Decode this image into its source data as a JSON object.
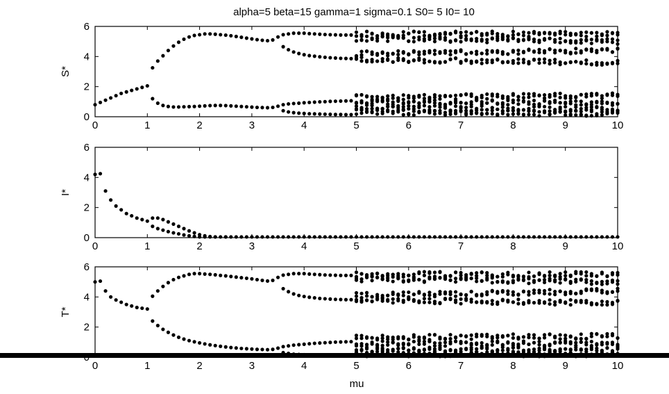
{
  "chart_data": {
    "type": "scatter",
    "title": "alpha=5 beta=15 gamma=1 sigma=0.1 S0= 5 I0= 10",
    "xlabel": "mu",
    "xlim": [
      0,
      10
    ],
    "xticks": [
      "0",
      "1",
      "2",
      "3",
      "4",
      "5",
      "6",
      "7",
      "8",
      "9",
      "10"
    ],
    "marker_color": "#000000",
    "panels": [
      {
        "ylabel": "S*",
        "ylim": [
          0,
          6
        ],
        "yticks": [
          "0",
          "2",
          "4",
          "6"
        ],
        "points": [
          [
            0.0,
            0.8
          ],
          [
            0.1,
            0.95
          ],
          [
            0.2,
            1.1
          ],
          [
            0.3,
            1.25
          ],
          [
            0.4,
            1.4
          ],
          [
            0.5,
            1.55
          ],
          [
            0.6,
            1.65
          ],
          [
            0.7,
            1.75
          ],
          [
            0.8,
            1.85
          ],
          [
            0.9,
            1.95
          ],
          [
            1.0,
            2.05
          ],
          [
            1.1,
            3.25
          ],
          [
            1.2,
            3.7
          ],
          [
            1.3,
            4.05
          ],
          [
            1.4,
            4.4
          ],
          [
            1.5,
            4.7
          ],
          [
            1.6,
            4.95
          ],
          [
            1.7,
            5.15
          ],
          [
            1.8,
            5.3
          ],
          [
            1.9,
            5.4
          ],
          [
            2.0,
            5.45
          ],
          [
            2.1,
            5.5
          ],
          [
            2.2,
            5.5
          ],
          [
            2.3,
            5.48
          ],
          [
            2.4,
            5.45
          ],
          [
            2.5,
            5.42
          ],
          [
            2.6,
            5.38
          ],
          [
            2.7,
            5.33
          ],
          [
            2.8,
            5.28
          ],
          [
            2.9,
            5.22
          ],
          [
            3.0,
            5.17
          ],
          [
            3.1,
            5.12
          ],
          [
            3.2,
            5.08
          ],
          [
            3.3,
            5.05
          ],
          [
            3.4,
            5.1
          ],
          [
            3.5,
            5.3
          ],
          [
            1.1,
            1.2
          ],
          [
            1.2,
            0.9
          ],
          [
            1.3,
            0.75
          ],
          [
            1.4,
            0.68
          ],
          [
            1.5,
            0.65
          ],
          [
            1.6,
            0.65
          ],
          [
            1.7,
            0.66
          ],
          [
            1.8,
            0.67
          ],
          [
            1.9,
            0.68
          ],
          [
            2.0,
            0.7
          ],
          [
            2.1,
            0.72
          ],
          [
            2.2,
            0.74
          ],
          [
            2.3,
            0.75
          ],
          [
            2.4,
            0.75
          ],
          [
            2.5,
            0.74
          ],
          [
            2.6,
            0.72
          ],
          [
            2.7,
            0.7
          ],
          [
            2.8,
            0.68
          ],
          [
            2.9,
            0.66
          ],
          [
            3.0,
            0.64
          ],
          [
            3.1,
            0.62
          ],
          [
            3.2,
            0.61
          ],
          [
            3.3,
            0.6
          ],
          [
            3.4,
            0.62
          ],
          [
            3.5,
            0.7
          ],
          [
            3.6,
            5.45
          ],
          [
            3.7,
            5.5
          ],
          [
            3.8,
            5.55
          ],
          [
            3.9,
            5.55
          ],
          [
            4.0,
            5.55
          ],
          [
            4.1,
            5.52
          ],
          [
            4.2,
            5.5
          ],
          [
            4.3,
            5.48
          ],
          [
            4.4,
            5.46
          ],
          [
            4.5,
            5.45
          ],
          [
            4.6,
            5.44
          ],
          [
            4.7,
            5.43
          ],
          [
            4.8,
            5.43
          ],
          [
            4.9,
            5.43
          ],
          [
            3.6,
            4.65
          ],
          [
            3.7,
            4.45
          ],
          [
            3.8,
            4.3
          ],
          [
            3.9,
            4.2
          ],
          [
            4.0,
            4.12
          ],
          [
            4.1,
            4.06
          ],
          [
            4.2,
            4.02
          ],
          [
            4.3,
            3.98
          ],
          [
            4.4,
            3.95
          ],
          [
            4.5,
            3.92
          ],
          [
            4.6,
            3.9
          ],
          [
            4.7,
            3.88
          ],
          [
            4.8,
            3.87
          ],
          [
            4.9,
            3.86
          ],
          [
            3.6,
            0.4
          ],
          [
            3.7,
            0.32
          ],
          [
            3.8,
            0.27
          ],
          [
            3.9,
            0.24
          ],
          [
            4.0,
            0.22
          ],
          [
            4.1,
            0.2
          ],
          [
            4.2,
            0.19
          ],
          [
            4.3,
            0.18
          ],
          [
            4.4,
            0.17
          ],
          [
            4.5,
            0.16
          ],
          [
            4.6,
            0.15
          ],
          [
            4.7,
            0.15
          ],
          [
            4.8,
            0.14
          ],
          [
            4.9,
            0.14
          ],
          [
            3.6,
            0.8
          ],
          [
            3.7,
            0.85
          ],
          [
            3.8,
            0.88
          ],
          [
            3.9,
            0.9
          ],
          [
            4.0,
            0.93
          ],
          [
            4.1,
            0.95
          ],
          [
            4.2,
            0.97
          ],
          [
            4.3,
            0.99
          ],
          [
            4.4,
            1.0
          ],
          [
            4.5,
            1.02
          ],
          [
            4.6,
            1.03
          ],
          [
            4.7,
            1.04
          ],
          [
            4.8,
            1.05
          ],
          [
            4.9,
            1.06
          ]
        ],
        "chaotic_bands": [
          [
            5.0,
            5.5
          ],
          [
            5.0,
            5.2
          ],
          [
            5.0,
            4.2
          ],
          [
            5.0,
            3.8
          ],
          [
            5.0,
            1.3
          ],
          [
            5.0,
            1.0
          ],
          [
            5.0,
            0.6
          ],
          [
            5.0,
            0.3
          ]
        ],
        "chaotic_bands_upper": [
          [
            10.0,
            5.5
          ],
          [
            10.0,
            5.0
          ],
          [
            10.0,
            4.4
          ],
          [
            10.0,
            3.6
          ],
          [
            10.0,
            1.4
          ],
          [
            10.0,
            0.9
          ],
          [
            10.0,
            0.5
          ],
          [
            10.0,
            0.2
          ]
        ]
      },
      {
        "ylabel": "I*",
        "ylim": [
          0,
          6
        ],
        "yticks": [
          "0",
          "2",
          "4",
          "6"
        ],
        "points": [
          [
            0.0,
            4.2
          ],
          [
            0.1,
            4.25
          ],
          [
            0.2,
            3.1
          ],
          [
            0.3,
            2.5
          ],
          [
            0.4,
            2.1
          ],
          [
            0.5,
            1.85
          ],
          [
            0.6,
            1.6
          ],
          [
            0.7,
            1.45
          ],
          [
            0.8,
            1.3
          ],
          [
            0.9,
            1.2
          ],
          [
            1.0,
            1.1
          ],
          [
            1.1,
            1.3
          ],
          [
            1.2,
            1.3
          ],
          [
            1.3,
            1.2
          ],
          [
            1.4,
            1.05
          ],
          [
            1.5,
            0.9
          ],
          [
            1.6,
            0.75
          ],
          [
            1.7,
            0.6
          ],
          [
            1.8,
            0.45
          ],
          [
            1.9,
            0.32
          ],
          [
            2.0,
            0.2
          ],
          [
            2.1,
            0.12
          ],
          [
            2.2,
            0.07
          ],
          [
            2.3,
            0.04
          ],
          [
            2.4,
            0.02
          ],
          [
            2.5,
            0.01
          ],
          [
            1.1,
            0.75
          ],
          [
            1.2,
            0.6
          ],
          [
            1.3,
            0.5
          ],
          [
            1.4,
            0.4
          ],
          [
            1.5,
            0.32
          ],
          [
            1.6,
            0.25
          ],
          [
            1.7,
            0.18
          ],
          [
            1.8,
            0.12
          ],
          [
            1.9,
            0.08
          ],
          [
            2.0,
            0.05
          ],
          [
            2.1,
            0.03
          ],
          [
            2.2,
            0.02
          ],
          [
            2.3,
            0.01
          ]
        ],
        "zero_from": 2.5
      },
      {
        "ylabel": "T*",
        "ylim": [
          0,
          6
        ],
        "yticks": [
          "0",
          "2",
          "4",
          "6"
        ],
        "points": [
          [
            0.0,
            5.0
          ],
          [
            0.1,
            5.05
          ],
          [
            0.2,
            4.4
          ],
          [
            0.3,
            4.0
          ],
          [
            0.4,
            3.8
          ],
          [
            0.5,
            3.65
          ],
          [
            0.6,
            3.5
          ],
          [
            0.7,
            3.4
          ],
          [
            0.8,
            3.3
          ],
          [
            0.9,
            3.25
          ],
          [
            1.0,
            3.2
          ],
          [
            1.1,
            4.05
          ],
          [
            1.2,
            4.4
          ],
          [
            1.3,
            4.7
          ],
          [
            1.4,
            4.95
          ],
          [
            1.5,
            5.15
          ],
          [
            1.6,
            5.3
          ],
          [
            1.7,
            5.4
          ],
          [
            1.8,
            5.5
          ],
          [
            1.9,
            5.55
          ],
          [
            2.0,
            5.55
          ],
          [
            2.1,
            5.52
          ],
          [
            2.2,
            5.5
          ],
          [
            2.3,
            5.47
          ],
          [
            2.4,
            5.43
          ],
          [
            2.5,
            5.4
          ],
          [
            2.6,
            5.36
          ],
          [
            2.7,
            5.32
          ],
          [
            2.8,
            5.28
          ],
          [
            2.9,
            5.24
          ],
          [
            3.0,
            5.2
          ],
          [
            3.1,
            5.15
          ],
          [
            3.2,
            5.1
          ],
          [
            3.3,
            5.06
          ],
          [
            3.4,
            5.1
          ],
          [
            3.5,
            5.3
          ],
          [
            1.1,
            2.4
          ],
          [
            1.2,
            2.1
          ],
          [
            1.3,
            1.85
          ],
          [
            1.4,
            1.65
          ],
          [
            1.5,
            1.47
          ],
          [
            1.6,
            1.32
          ],
          [
            1.7,
            1.2
          ],
          [
            1.8,
            1.1
          ],
          [
            1.9,
            1.02
          ],
          [
            2.0,
            0.95
          ],
          [
            2.1,
            0.88
          ],
          [
            2.2,
            0.82
          ],
          [
            2.3,
            0.77
          ],
          [
            2.4,
            0.72
          ],
          [
            2.5,
            0.68
          ],
          [
            2.6,
            0.64
          ],
          [
            2.7,
            0.61
          ],
          [
            2.8,
            0.58
          ],
          [
            2.9,
            0.56
          ],
          [
            3.0,
            0.54
          ],
          [
            3.1,
            0.52
          ],
          [
            3.2,
            0.51
          ],
          [
            3.3,
            0.5
          ],
          [
            3.4,
            0.52
          ],
          [
            3.5,
            0.6
          ],
          [
            3.6,
            5.45
          ],
          [
            3.7,
            5.5
          ],
          [
            3.8,
            5.55
          ],
          [
            3.9,
            5.55
          ],
          [
            4.0,
            5.55
          ],
          [
            4.1,
            5.52
          ],
          [
            4.2,
            5.5
          ],
          [
            4.3,
            5.48
          ],
          [
            4.4,
            5.46
          ],
          [
            4.5,
            5.45
          ],
          [
            4.6,
            5.44
          ],
          [
            4.7,
            5.43
          ],
          [
            4.8,
            5.43
          ],
          [
            4.9,
            5.43
          ],
          [
            3.6,
            4.55
          ],
          [
            3.7,
            4.35
          ],
          [
            3.8,
            4.2
          ],
          [
            3.9,
            4.1
          ],
          [
            4.0,
            4.03
          ],
          [
            4.1,
            3.98
          ],
          [
            4.2,
            3.94
          ],
          [
            4.3,
            3.9
          ],
          [
            4.4,
            3.88
          ],
          [
            4.5,
            3.86
          ],
          [
            4.6,
            3.84
          ],
          [
            4.7,
            3.83
          ],
          [
            4.8,
            3.82
          ],
          [
            4.9,
            3.82
          ],
          [
            3.6,
            0.3
          ],
          [
            3.7,
            0.25
          ],
          [
            3.8,
            0.2
          ],
          [
            3.9,
            0.18
          ],
          [
            4.0,
            0.16
          ],
          [
            4.1,
            0.15
          ],
          [
            4.2,
            0.14
          ],
          [
            4.3,
            0.13
          ],
          [
            4.4,
            0.12
          ],
          [
            4.5,
            0.12
          ],
          [
            4.6,
            0.11
          ],
          [
            4.7,
            0.11
          ],
          [
            4.8,
            0.1
          ],
          [
            4.9,
            0.1
          ],
          [
            3.6,
            0.7
          ],
          [
            3.7,
            0.75
          ],
          [
            3.8,
            0.8
          ],
          [
            3.9,
            0.83
          ],
          [
            4.0,
            0.86
          ],
          [
            4.1,
            0.89
          ],
          [
            4.2,
            0.92
          ],
          [
            4.3,
            0.94
          ],
          [
            4.4,
            0.96
          ],
          [
            4.5,
            0.98
          ],
          [
            4.6,
            1.0
          ],
          [
            4.7,
            1.01
          ],
          [
            4.8,
            1.02
          ],
          [
            4.9,
            1.03
          ]
        ],
        "chaotic_bands": [
          [
            5.0,
            5.5
          ],
          [
            5.0,
            5.2
          ],
          [
            5.0,
            4.1
          ],
          [
            5.0,
            3.8
          ],
          [
            5.0,
            1.3
          ],
          [
            5.0,
            0.9
          ],
          [
            5.0,
            0.5
          ],
          [
            5.0,
            0.2
          ]
        ],
        "chaotic_bands_upper": [
          [
            10.0,
            5.5
          ],
          [
            10.0,
            5.0
          ],
          [
            10.0,
            4.4
          ],
          [
            10.0,
            3.6
          ],
          [
            10.0,
            1.4
          ],
          [
            10.0,
            0.9
          ],
          [
            10.0,
            0.5
          ],
          [
            10.0,
            0.2
          ]
        ]
      }
    ]
  }
}
